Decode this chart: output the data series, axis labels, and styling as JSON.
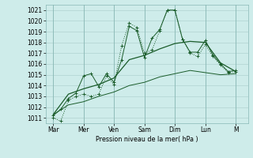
{
  "bg_color": "#ceecea",
  "grid_color": "#aaccca",
  "line_color": "#1a5c2a",
  "xlabel": "Pression niveau de la mer( hPa )",
  "ylim": [
    1010.5,
    1021.5
  ],
  "yticks": [
    1011,
    1012,
    1013,
    1014,
    1015,
    1016,
    1017,
    1018,
    1019,
    1020,
    1021
  ],
  "day_labels": [
    "Mar",
    "Mer",
    "Ven",
    "Sam",
    "Dim",
    "Lun",
    "M"
  ],
  "day_positions": [
    0,
    2,
    4,
    6,
    8,
    10,
    12
  ],
  "xlim": [
    -0.5,
    12.8
  ],
  "line1_x": [
    0.0,
    0.5,
    1.0,
    1.5,
    2.0,
    2.5,
    3.0,
    3.5,
    4.0,
    4.5,
    5.0,
    5.5,
    6.0,
    6.5,
    7.0,
    7.5,
    8.0,
    8.5,
    9.0,
    9.5,
    10.0,
    10.5,
    11.0,
    11.5,
    12.0
  ],
  "line1_y": [
    1011.0,
    1010.7,
    1012.6,
    1013.0,
    1013.2,
    1013.0,
    1013.2,
    1014.9,
    1014.1,
    1017.7,
    1019.8,
    1019.4,
    1017.0,
    1017.3,
    1019.1,
    1021.0,
    1021.0,
    1018.3,
    1017.0,
    1016.7,
    1017.8,
    1016.7,
    1015.9,
    1015.2,
    1015.3
  ],
  "line2_x": [
    0.0,
    0.5,
    1.0,
    1.5,
    2.0,
    2.5,
    3.0,
    3.5,
    4.0,
    4.5,
    5.0,
    5.5,
    6.0,
    6.5,
    7.0,
    7.5,
    8.0,
    8.5,
    9.0,
    9.5,
    10.0,
    10.5,
    11.0,
    11.5,
    12.0
  ],
  "line2_y": [
    1011.2,
    1011.8,
    1012.8,
    1013.3,
    1014.9,
    1015.1,
    1013.9,
    1015.1,
    1014.3,
    1016.4,
    1019.5,
    1019.1,
    1016.6,
    1018.4,
    1019.2,
    1021.0,
    1021.0,
    1018.3,
    1017.1,
    1017.1,
    1018.2,
    1016.8,
    1016.0,
    1015.3,
    1015.4
  ],
  "line3_x": [
    0.0,
    1.0,
    2.0,
    3.0,
    4.0,
    5.0,
    6.0,
    7.0,
    8.0,
    9.0,
    10.0,
    11.0,
    12.0
  ],
  "line3_y": [
    1011.3,
    1013.2,
    1013.7,
    1014.1,
    1014.7,
    1016.4,
    1016.8,
    1017.4,
    1017.9,
    1018.1,
    1018.0,
    1016.1,
    1015.3
  ],
  "line4_x": [
    0.0,
    1.0,
    2.0,
    3.0,
    4.0,
    5.0,
    6.0,
    7.0,
    8.0,
    9.0,
    10.0,
    11.0,
    12.0
  ],
  "line4_y": [
    1011.3,
    1012.2,
    1012.5,
    1013.0,
    1013.4,
    1014.0,
    1014.3,
    1014.8,
    1015.1,
    1015.4,
    1015.2,
    1015.0,
    1015.1
  ]
}
